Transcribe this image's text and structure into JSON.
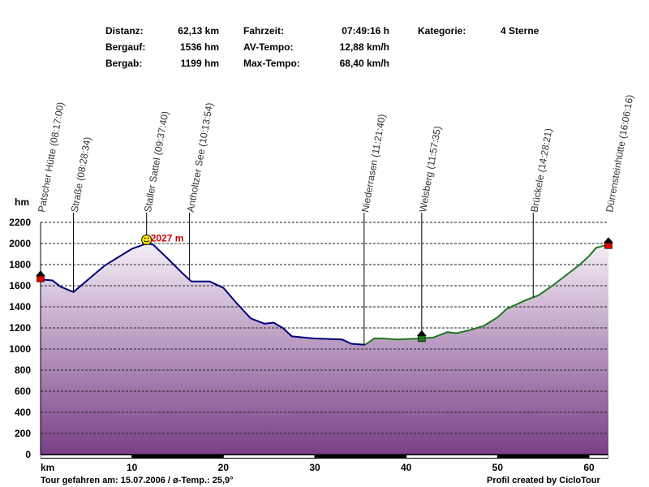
{
  "stats": [
    {
      "label": "Distanz:",
      "value": "62,13 km"
    },
    {
      "label": "Bergauf:",
      "value": "1536 hm"
    },
    {
      "label": "Bergab:",
      "value": "1199 hm"
    },
    {
      "label": "Fahrzeit:",
      "value": "07:49:16 h"
    },
    {
      "label": "AV-Tempo:",
      "value": "12,88 km/h"
    },
    {
      "label": "Max-Tempo:",
      "value": "68,40 km/h"
    },
    {
      "label": "Kategorie:",
      "value": "4 Sterne"
    }
  ],
  "footer": {
    "left": "Tour gefahren am: 15.07.2006  /  ø-Temp.: 25,9°",
    "right": "Profil created by CicloTour"
  },
  "colors": {
    "profile_line_main": "#00007a",
    "profile_line_green": "#1f7a1f",
    "fill_top": "#f4eef6",
    "fill_bottom": "#7a3f86",
    "max_label": "#cc0000",
    "start_marker": "#dd0000",
    "house_roof": "#000000",
    "mid_marker": "#1a7a1a"
  },
  "chart_data": {
    "type": "area",
    "xlabel": "km",
    "ylabel": "hm",
    "xlim": [
      0,
      62.13
    ],
    "ylim": [
      0,
      2200
    ],
    "xticks": [
      10,
      20,
      30,
      40,
      50,
      60
    ],
    "yticks": [
      0,
      200,
      400,
      600,
      800,
      1000,
      1200,
      1400,
      1600,
      1800,
      2000,
      2200
    ],
    "grid": true,
    "max_label": "2027 m",
    "max_point": {
      "x": 11.6,
      "y": 2027
    },
    "profile": [
      {
        "x": 0,
        "y": 1660
      },
      {
        "x": 1.3,
        "y": 1650
      },
      {
        "x": 2.2,
        "y": 1590
      },
      {
        "x": 3.6,
        "y": 1540
      },
      {
        "x": 5.5,
        "y": 1680
      },
      {
        "x": 7,
        "y": 1790
      },
      {
        "x": 8.5,
        "y": 1870
      },
      {
        "x": 10,
        "y": 1950
      },
      {
        "x": 11.6,
        "y": 2000
      },
      {
        "x": 12.3,
        "y": 1990
      },
      {
        "x": 14,
        "y": 1850
      },
      {
        "x": 15.5,
        "y": 1720
      },
      {
        "x": 16.5,
        "y": 1640
      },
      {
        "x": 18.5,
        "y": 1640
      },
      {
        "x": 20,
        "y": 1580
      },
      {
        "x": 21.5,
        "y": 1430
      },
      {
        "x": 23,
        "y": 1290
      },
      {
        "x": 24.5,
        "y": 1240
      },
      {
        "x": 25.5,
        "y": 1250
      },
      {
        "x": 26.5,
        "y": 1200
      },
      {
        "x": 27.5,
        "y": 1120
      },
      {
        "x": 30,
        "y": 1100
      },
      {
        "x": 33,
        "y": 1090
      },
      {
        "x": 34,
        "y": 1050
      },
      {
        "x": 35.5,
        "y": 1040
      },
      {
        "x": 36.5,
        "y": 1100
      },
      {
        "x": 37.5,
        "y": 1100
      },
      {
        "x": 39,
        "y": 1090
      },
      {
        "x": 41.5,
        "y": 1100
      },
      {
        "x": 43,
        "y": 1110
      },
      {
        "x": 44.5,
        "y": 1160
      },
      {
        "x": 45.5,
        "y": 1150
      },
      {
        "x": 47,
        "y": 1180
      },
      {
        "x": 48.5,
        "y": 1220
      },
      {
        "x": 50,
        "y": 1300
      },
      {
        "x": 51,
        "y": 1380
      },
      {
        "x": 52,
        "y": 1420
      },
      {
        "x": 53,
        "y": 1460
      },
      {
        "x": 54.5,
        "y": 1510
      },
      {
        "x": 56,
        "y": 1600
      },
      {
        "x": 57.5,
        "y": 1700
      },
      {
        "x": 59,
        "y": 1800
      },
      {
        "x": 60,
        "y": 1880
      },
      {
        "x": 60.8,
        "y": 1960
      },
      {
        "x": 62.13,
        "y": 1990
      }
    ],
    "green_segment_start": 35.5,
    "green_segment_end": 62.13,
    "waypoints": [
      {
        "name": "Patscher Hütte (08:17:00)",
        "km": 0
      },
      {
        "name": "Straße (08:28:34)",
        "km": 3.6
      },
      {
        "name": "Staller Sattel (09:37:40)",
        "km": 11.6
      },
      {
        "name": "Antholtzer See (10:13:54)",
        "km": 16.3
      },
      {
        "name": "Niederrasen (11:21:40)",
        "km": 35.4
      },
      {
        "name": "Welsberg (11:57:35)",
        "km": 41.7
      },
      {
        "name": "Brückele (14:28:21)",
        "km": 53.9
      },
      {
        "name": "Dürrensteinhütte (16:06:16)",
        "km": 62.13
      }
    ]
  }
}
